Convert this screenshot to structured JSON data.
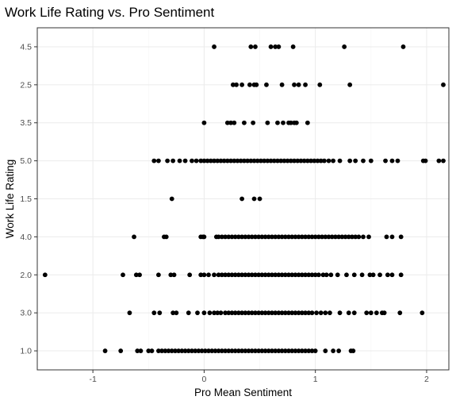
{
  "chart_data": {
    "type": "scatter",
    "title": "Work Life Rating vs. Pro Sentiment",
    "xlabel": "Pro Mean Sentiment",
    "ylabel": "Work Life Rating",
    "xlim": [
      -1.5,
      2.2
    ],
    "x_ticks": [
      "-1",
      "0",
      "1",
      "2"
    ],
    "x_tick_values": [
      -1,
      0,
      1,
      2
    ],
    "y_categories": [
      "1.0",
      "3.0",
      "2.0",
      "4.0",
      "1.5",
      "5.0",
      "3.5",
      "2.5",
      "4.5"
    ],
    "grid": true,
    "point_color": "#000000",
    "series": [
      {
        "y": "4.5",
        "x": [
          0.09,
          0.42,
          0.46,
          0.6,
          0.64,
          0.67,
          0.8,
          1.26,
          1.79
        ]
      },
      {
        "y": "2.5",
        "x": [
          0.26,
          0.29,
          0.34,
          0.41,
          0.45,
          0.47,
          0.56,
          0.7,
          0.81,
          0.85,
          0.91,
          1.04,
          1.31,
          2.15
        ]
      },
      {
        "y": "3.5",
        "x": [
          0.0,
          0.21,
          0.24,
          0.27,
          0.36,
          0.44,
          0.57,
          0.66,
          0.71,
          0.76,
          0.78,
          0.81,
          0.83,
          0.93
        ]
      },
      {
        "y": "5.0",
        "x": [
          -0.45,
          -0.41,
          -0.33,
          -0.28,
          -0.22,
          -0.17,
          -0.11,
          -0.07,
          -0.03,
          0.0,
          0.03,
          0.06,
          0.09,
          0.12,
          0.15,
          0.18,
          0.21,
          0.24,
          0.27,
          0.3,
          0.33,
          0.36,
          0.39,
          0.42,
          0.45,
          0.48,
          0.51,
          0.54,
          0.57,
          0.6,
          0.63,
          0.66,
          0.69,
          0.72,
          0.75,
          0.78,
          0.81,
          0.84,
          0.87,
          0.9,
          0.93,
          0.96,
          0.99,
          1.02,
          1.05,
          1.08,
          1.12,
          1.16,
          1.22,
          1.31,
          1.36,
          1.43,
          1.5,
          1.63,
          1.69,
          1.74,
          1.97,
          1.99,
          2.11,
          2.15
        ]
      },
      {
        "y": "1.5",
        "x": [
          -0.29,
          0.34,
          0.45,
          0.5
        ]
      },
      {
        "y": "4.0",
        "x": [
          -0.63,
          -0.36,
          -0.34,
          -0.03,
          -0.01,
          0.0,
          0.11,
          0.13,
          0.16,
          0.19,
          0.22,
          0.25,
          0.28,
          0.31,
          0.34,
          0.37,
          0.4,
          0.43,
          0.46,
          0.49,
          0.52,
          0.55,
          0.58,
          0.61,
          0.64,
          0.67,
          0.7,
          0.73,
          0.76,
          0.79,
          0.82,
          0.85,
          0.88,
          0.91,
          0.94,
          0.97,
          1.0,
          1.03,
          1.06,
          1.09,
          1.12,
          1.15,
          1.18,
          1.21,
          1.24,
          1.27,
          1.3,
          1.33,
          1.36,
          1.39,
          1.43,
          1.48,
          1.64,
          1.69,
          1.77
        ]
      },
      {
        "y": "2.0",
        "x": [
          -1.43,
          -0.73,
          -0.61,
          -0.58,
          -0.41,
          -0.3,
          -0.27,
          -0.13,
          -0.03,
          0.0,
          0.04,
          0.09,
          0.13,
          0.16,
          0.19,
          0.22,
          0.25,
          0.28,
          0.31,
          0.34,
          0.37,
          0.4,
          0.43,
          0.46,
          0.49,
          0.52,
          0.55,
          0.58,
          0.61,
          0.64,
          0.67,
          0.7,
          0.73,
          0.76,
          0.79,
          0.82,
          0.85,
          0.88,
          0.91,
          0.94,
          0.97,
          1.0,
          1.03,
          1.07,
          1.1,
          1.14,
          1.2,
          1.28,
          1.35,
          1.42,
          1.49,
          1.52,
          1.58,
          1.65,
          1.69,
          1.77
        ]
      },
      {
        "y": "3.0",
        "x": [
          -0.67,
          -0.45,
          -0.4,
          -0.28,
          -0.25,
          -0.14,
          -0.06,
          0.0,
          0.05,
          0.09,
          0.12,
          0.15,
          0.19,
          0.22,
          0.25,
          0.28,
          0.31,
          0.34,
          0.37,
          0.4,
          0.43,
          0.46,
          0.49,
          0.52,
          0.55,
          0.58,
          0.61,
          0.64,
          0.67,
          0.7,
          0.73,
          0.76,
          0.79,
          0.82,
          0.85,
          0.88,
          0.91,
          0.94,
          0.97,
          1.01,
          1.05,
          1.09,
          1.13,
          1.22,
          1.3,
          1.35,
          1.46,
          1.5,
          1.55,
          1.6,
          1.62,
          1.76,
          1.96
        ]
      },
      {
        "y": "1.0",
        "x": [
          -0.89,
          -0.75,
          -0.6,
          -0.57,
          -0.5,
          -0.47,
          -0.41,
          -0.38,
          -0.35,
          -0.32,
          -0.29,
          -0.26,
          -0.23,
          -0.2,
          -0.17,
          -0.14,
          -0.11,
          -0.08,
          -0.05,
          -0.02,
          0.01,
          0.04,
          0.07,
          0.1,
          0.13,
          0.16,
          0.19,
          0.22,
          0.25,
          0.28,
          0.31,
          0.34,
          0.37,
          0.4,
          0.43,
          0.46,
          0.49,
          0.52,
          0.55,
          0.58,
          0.61,
          0.64,
          0.67,
          0.7,
          0.73,
          0.76,
          0.79,
          0.82,
          0.85,
          0.88,
          0.91,
          0.94,
          0.97,
          1.0,
          1.09,
          1.16,
          1.21,
          1.32,
          1.34
        ]
      }
    ]
  }
}
